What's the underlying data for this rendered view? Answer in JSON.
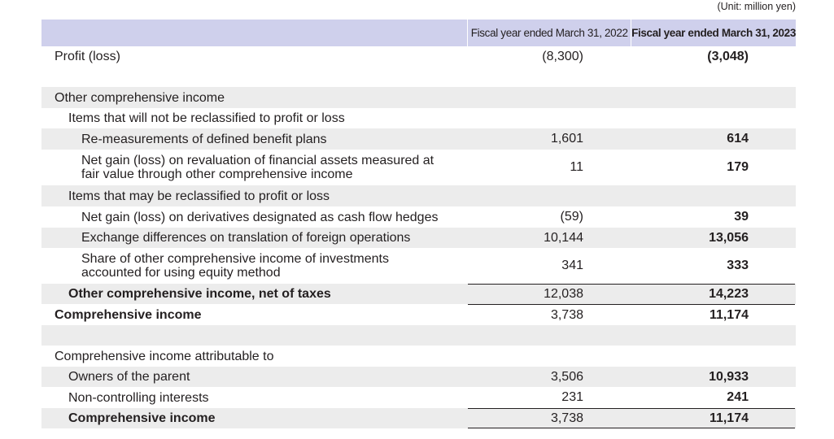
{
  "unit": "(Unit: million yen)",
  "columns": {
    "fy2022": "Fiscal year ended March 31, 2022",
    "fy2023": "Fiscal year ended March 31, 2023"
  },
  "rows": {
    "profit": {
      "label": "Profit (loss)",
      "fy2022": "(8,300)",
      "fy2023": "(3,048)"
    },
    "oci_heading": {
      "label": "Other comprehensive income"
    },
    "not_reclass_heading": {
      "label": "Items that will not be reclassified to profit or loss"
    },
    "remeasure": {
      "label": "Re-measurements of defined benefit plans",
      "fy2022": "1,601",
      "fy2023": "614"
    },
    "fvoci": {
      "label_line1": "Net gain (loss) on revaluation of financial assets measured at",
      "label_line2": "fair value through other comprehensive income",
      "fy2022": "11",
      "fy2023": "179"
    },
    "reclass_heading": {
      "label": "Items that may be reclassified to profit or loss"
    },
    "cfh": {
      "label": "Net gain (loss) on derivatives designated as cash flow hedges",
      "fy2022": "(59)",
      "fy2023": "39"
    },
    "fx": {
      "label": "Exchange differences on translation of foreign operations",
      "fy2022": "10,144",
      "fy2023": "13,056"
    },
    "equity_method": {
      "label_line1": "Share of other comprehensive income of investments",
      "label_line2": "accounted for using equity method",
      "fy2022": "341",
      "fy2023": "333"
    },
    "oci_net": {
      "label": "Other comprehensive income, net of taxes",
      "fy2022": "12,038",
      "fy2023": "14,223"
    },
    "comprehensive": {
      "label": "Comprehensive income",
      "fy2022": "3,738",
      "fy2023": "11,174"
    },
    "attrib_heading": {
      "label": "Comprehensive income attributable to"
    },
    "owners": {
      "label": "Owners of the parent",
      "fy2022": "3,506",
      "fy2023": "10,933"
    },
    "nci": {
      "label": "Non-controlling interests",
      "fy2022": "231",
      "fy2023": "241"
    },
    "comprehensive_total": {
      "label": "Comprehensive income",
      "fy2022": "3,738",
      "fy2023": "11,174"
    }
  }
}
